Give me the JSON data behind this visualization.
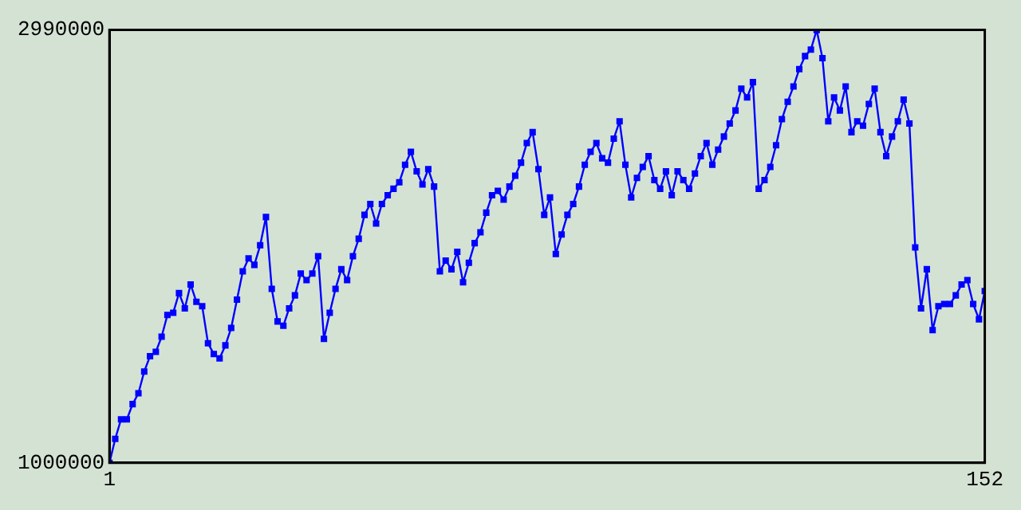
{
  "chart_data": {
    "type": "line",
    "marker": "square",
    "xlim": [
      1,
      152
    ],
    "xticks": [
      1,
      152
    ],
    "ylim": [
      1000000,
      2990000
    ],
    "yticks": [
      1000000,
      2990000
    ],
    "x": [
      1,
      2,
      3,
      4,
      5,
      6,
      7,
      8,
      9,
      10,
      11,
      12,
      13,
      14,
      15,
      16,
      17,
      18,
      19,
      20,
      21,
      22,
      23,
      24,
      25,
      26,
      27,
      28,
      29,
      30,
      31,
      32,
      33,
      34,
      35,
      36,
      37,
      38,
      39,
      40,
      41,
      42,
      43,
      44,
      45,
      46,
      47,
      48,
      49,
      50,
      51,
      52,
      53,
      54,
      55,
      56,
      57,
      58,
      59,
      60,
      61,
      62,
      63,
      64,
      65,
      66,
      67,
      68,
      69,
      70,
      71,
      72,
      73,
      74,
      75,
      76,
      77,
      78,
      79,
      80,
      81,
      82,
      83,
      84,
      85,
      86,
      87,
      88,
      89,
      90,
      91,
      92,
      93,
      94,
      95,
      96,
      97,
      98,
      99,
      100,
      101,
      102,
      103,
      104,
      105,
      106,
      107,
      108,
      109,
      110,
      111,
      112,
      113,
      114,
      115,
      116,
      117,
      118,
      119,
      120,
      121,
      122,
      123,
      124,
      125,
      126,
      127,
      128,
      129,
      130,
      131,
      132,
      133,
      134,
      135,
      136,
      137,
      138,
      139,
      140,
      141,
      142,
      143,
      144,
      145,
      146,
      147,
      148,
      149,
      150,
      151,
      152
    ],
    "series": [
      {
        "color": "#0000ff",
        "values": [
          1000000,
          1110000,
          1200000,
          1200000,
          1270000,
          1320000,
          1420000,
          1490000,
          1510000,
          1580000,
          1680000,
          1690000,
          1780000,
          1710000,
          1820000,
          1740000,
          1720000,
          1550000,
          1500000,
          1480000,
          1540000,
          1620000,
          1750000,
          1880000,
          1940000,
          1910000,
          2000000,
          2130000,
          1800000,
          1650000,
          1630000,
          1710000,
          1770000,
          1870000,
          1840000,
          1870000,
          1950000,
          1570000,
          1690000,
          1800000,
          1890000,
          1840000,
          1950000,
          2030000,
          2140000,
          2190000,
          2100000,
          2190000,
          2230000,
          2260000,
          2290000,
          2370000,
          2430000,
          2340000,
          2280000,
          2350000,
          2270000,
          1880000,
          1930000,
          1890000,
          1970000,
          1830000,
          1920000,
          2010000,
          2060000,
          2150000,
          2230000,
          2250000,
          2210000,
          2270000,
          2320000,
          2380000,
          2470000,
          2520000,
          2350000,
          2140000,
          2220000,
          1960000,
          2050000,
          2140000,
          2190000,
          2270000,
          2370000,
          2430000,
          2470000,
          2400000,
          2380000,
          2490000,
          2570000,
          2370000,
          2220000,
          2310000,
          2360000,
          2410000,
          2300000,
          2260000,
          2340000,
          2230000,
          2340000,
          2300000,
          2260000,
          2330000,
          2410000,
          2470000,
          2370000,
          2440000,
          2500000,
          2560000,
          2620000,
          2720000,
          2680000,
          2750000,
          2260000,
          2300000,
          2360000,
          2460000,
          2580000,
          2660000,
          2730000,
          2810000,
          2870000,
          2900000,
          2990000,
          2860000,
          2570000,
          2680000,
          2620000,
          2730000,
          2520000,
          2570000,
          2550000,
          2650000,
          2720000,
          2520000,
          2410000,
          2500000,
          2570000,
          2670000,
          2560000,
          1990000,
          1710000,
          1890000,
          1610000,
          1720000,
          1730000,
          1730000,
          1770000,
          1820000,
          1840000,
          1730000,
          1660000,
          1790000
        ]
      }
    ]
  }
}
